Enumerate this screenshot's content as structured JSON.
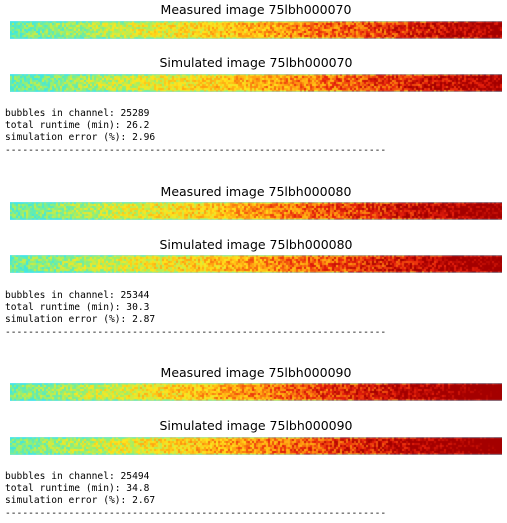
{
  "runs": [
    {
      "measured_title": "Measured image 75lbh000070",
      "simulated_title": "Simulated image 75lbh000070",
      "stats": {
        "bubbles": "bubbles in channel: 25289",
        "runtime": "total runtime (min): 26.2",
        "error": "simulation error (%): 2.96"
      },
      "heat_level": 0.45,
      "separator": "------------------------------------------------------------------------------------"
    },
    {
      "measured_title": "Measured image 75lbh000080",
      "simulated_title": "Simulated image 75lbh000080",
      "stats": {
        "bubbles": "bubbles in channel: 25344",
        "runtime": "total runtime (min): 30.3",
        "error": "simulation error (%): 2.87"
      },
      "heat_level": 0.58,
      "separator": "------------------------------------------------------------------------------------"
    },
    {
      "measured_title": "Measured image 75lbh000090",
      "simulated_title": "Simulated image 75lbh000090",
      "stats": {
        "bubbles": "bubbles in channel: 25494",
        "runtime": "total runtime (min): 34.8",
        "error": "simulation error (%): 2.67"
      },
      "heat_level": 0.72,
      "separator": "------------------------------------------------------------------------------------"
    }
  ],
  "colormap": {
    "cyan": "#3fe8e0",
    "green": "#9cf06a",
    "yellow": "#ffe61c",
    "orange": "#ff9a10",
    "red": "#e8200c",
    "darkred": "#a40000"
  }
}
